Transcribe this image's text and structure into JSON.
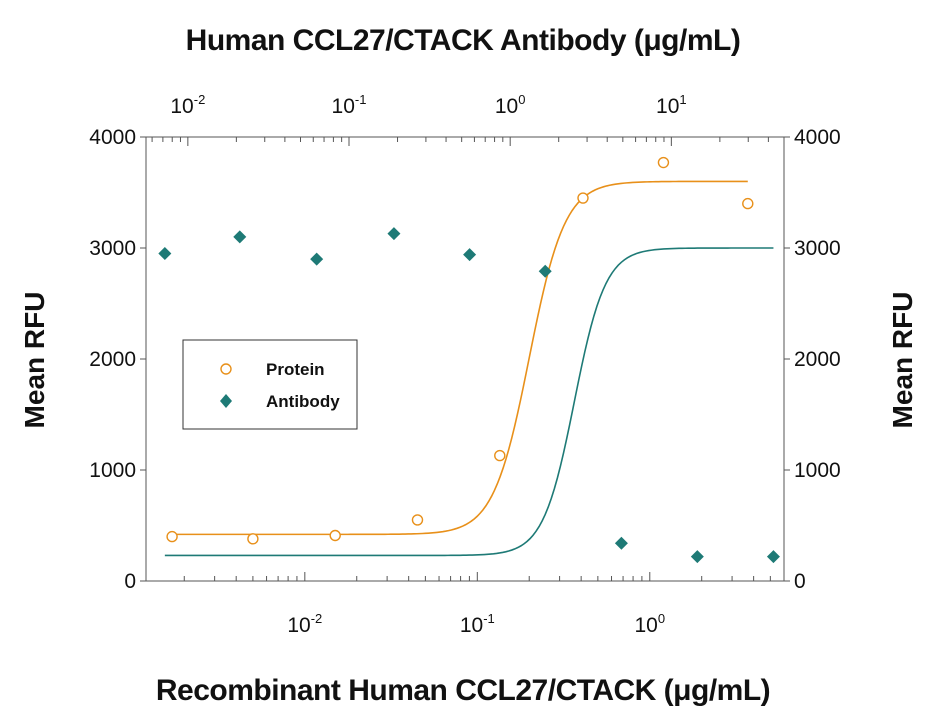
{
  "chart_data": {
    "type": "scatter",
    "title_top": "Human CCL27/CTACK Antibody (μg/mL)",
    "xlabel": "Recombinant Human CCL27/CTACK (μg/mL)",
    "ylabel_left": "Mean RFU",
    "ylabel_right": "Mean RFU",
    "ylim": [
      0,
      4000
    ],
    "yticks": [
      {
        "value": 0,
        "label": "0"
      },
      {
        "value": 1000,
        "label": "1000"
      },
      {
        "value": 2000,
        "label": "2000"
      },
      {
        "value": 3000,
        "label": "3000"
      },
      {
        "value": 4000,
        "label": "4000"
      }
    ],
    "x_bottom": {
      "scale": "log",
      "range": [
        0.0012,
        6.0
      ],
      "ticks": [
        {
          "value": 0.01,
          "base": "10",
          "exp": "-2"
        },
        {
          "value": 0.1,
          "base": "10",
          "exp": "-1"
        },
        {
          "value": 1,
          "base": "10",
          "exp": "0"
        }
      ]
    },
    "x_top": {
      "scale": "log",
      "range": [
        0.0055,
        50
      ],
      "ticks": [
        {
          "value": 0.01,
          "base": "10",
          "exp": "-2"
        },
        {
          "value": 0.1,
          "base": "10",
          "exp": "-1"
        },
        {
          "value": 1,
          "base": "10",
          "exp": "0"
        },
        {
          "value": 10,
          "base": "10",
          "exp": "1"
        }
      ]
    },
    "legend": {
      "position": "left",
      "entries": [
        "Protein",
        "Antibody"
      ]
    },
    "grid": false,
    "series": [
      {
        "name": "Protein",
        "axis": "bottom",
        "marker": "open-circle",
        "color": "#E8901A",
        "x": [
          0.0017,
          0.005,
          0.015,
          0.045,
          0.135,
          0.41,
          1.2,
          3.7
        ],
        "y": [
          400,
          380,
          410,
          550,
          1130,
          3450,
          3770,
          3400
        ],
        "fit": {
          "bottom": 420,
          "top": 3600,
          "ec50": 0.2,
          "hill": 4.2
        }
      },
      {
        "name": "Antibody",
        "axis": "top",
        "marker": "filled-diamond",
        "color": "#1E7A76",
        "x": [
          0.0072,
          0.021,
          0.063,
          0.19,
          0.56,
          1.65,
          4.9,
          14.5,
          43
        ],
        "y": [
          2950,
          3100,
          2900,
          3130,
          2940,
          2790,
          340,
          220,
          220
        ],
        "fit": {
          "bottom": 230,
          "top": 3000,
          "ec50": 2.5,
          "hill": 4.5
        }
      }
    ]
  }
}
